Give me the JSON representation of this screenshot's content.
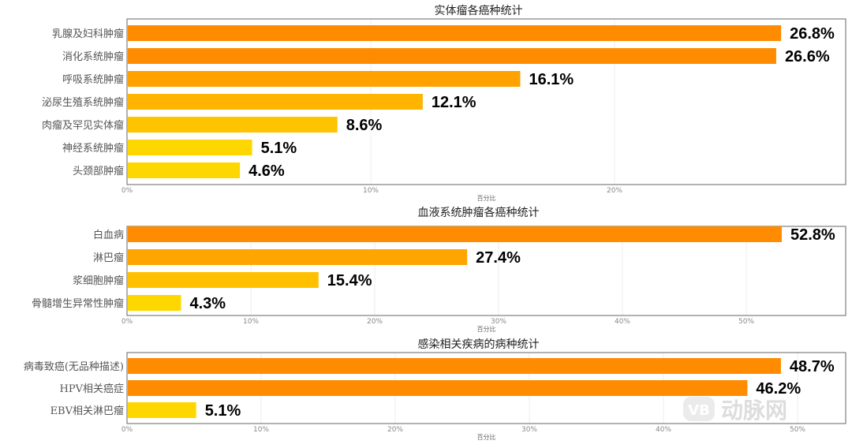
{
  "chart_data": [
    {
      "type": "bar",
      "orientation": "horizontal",
      "title": "实体瘤各癌种统计",
      "xlabel": "百分比",
      "xlim": [
        0,
        29.5
      ],
      "xticks": [
        0,
        10,
        20
      ],
      "tick_format": "%",
      "grid": true,
      "categories": [
        "乳腺及妇科肿瘤",
        "消化系统肿瘤",
        "呼吸系统肿瘤",
        "泌尿生殖系统肿瘤",
        "肉瘤及罕见实体瘤",
        "神经系统肿瘤",
        "头颈部肿瘤"
      ],
      "values": [
        26.8,
        26.6,
        16.1,
        12.1,
        8.6,
        5.1,
        4.6
      ],
      "labels": [
        "26.8%",
        "26.6%",
        "16.1%",
        "12.1%",
        "8.6%",
        "5.1%",
        "4.6%"
      ],
      "colors": [
        "#FF8C00",
        "#FF8C00",
        "#FFA200",
        "#FFB400",
        "#FFC400",
        "#FFD700",
        "#FFD700"
      ]
    },
    {
      "type": "bar",
      "orientation": "horizontal",
      "title": "血液系统肿瘤各癌种统计",
      "xlabel": "百分比",
      "xlim": [
        0,
        58
      ],
      "xticks": [
        0,
        10,
        20,
        30,
        40,
        50
      ],
      "tick_format": "%",
      "grid": true,
      "categories": [
        "白血病",
        "淋巴瘤",
        "浆细胞肿瘤",
        "骨髓增生异常性肿瘤"
      ],
      "values": [
        52.8,
        27.4,
        15.4,
        4.3
      ],
      "labels": [
        "52.8%",
        "27.4%",
        "15.4%",
        "4.3%"
      ],
      "colors": [
        "#FF8C00",
        "#FFA500",
        "#FFC000",
        "#FFD700"
      ]
    },
    {
      "type": "bar",
      "orientation": "horizontal",
      "title": "感染相关疾病的病种统计",
      "xlabel": "百分比",
      "xlim": [
        0,
        53.5
      ],
      "xticks": [
        0,
        10,
        20,
        30,
        40,
        50
      ],
      "tick_format": "%",
      "grid": true,
      "categories": [
        "病毒致癌(无品种描述)",
        "HPV相关癌症",
        "EBV相关淋巴瘤"
      ],
      "values": [
        48.7,
        46.2,
        5.1
      ],
      "labels": [
        "48.7%",
        "46.2%",
        "5.1%"
      ],
      "colors": [
        "#FF8C00",
        "#FF8C00",
        "#FFD700"
      ]
    }
  ],
  "watermark": {
    "text": "动脉网",
    "logo": "VB"
  }
}
